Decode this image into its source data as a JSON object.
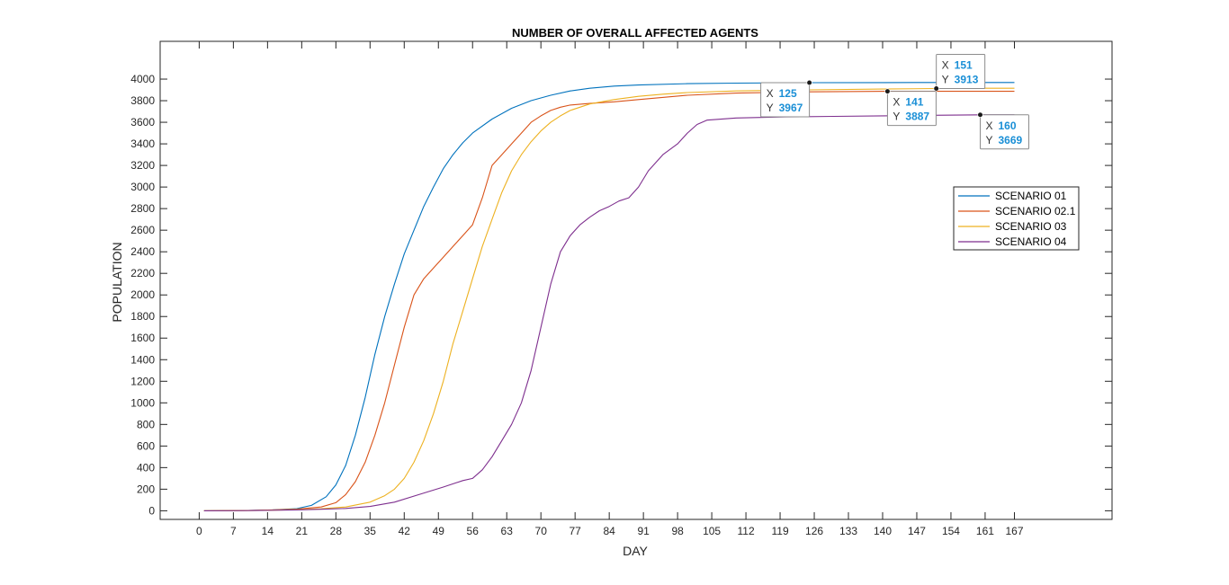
{
  "chart_data": {
    "type": "line",
    "title": "NUMBER OF OVERALL AFFECTED AGENTS",
    "xlabel": "DAY",
    "ylabel": "POPULATION",
    "xlim": [
      -8,
      187
    ],
    "ylim": [
      -80,
      4350
    ],
    "xticks": [
      0,
      7,
      14,
      21,
      28,
      35,
      42,
      49,
      56,
      63,
      70,
      77,
      84,
      91,
      98,
      105,
      112,
      119,
      126,
      133,
      140,
      147,
      154,
      161,
      167
    ],
    "yticks": [
      0,
      200,
      400,
      600,
      800,
      1000,
      1200,
      1400,
      1600,
      1800,
      2000,
      2200,
      2400,
      2600,
      2800,
      3000,
      3200,
      3400,
      3600,
      3800,
      4000
    ],
    "grid": false,
    "legend_position": "right",
    "series": [
      {
        "name": "SCENARIO 01",
        "color": "#0072BD",
        "x": [
          1,
          10,
          15,
          20,
          23,
          26,
          28,
          30,
          32,
          34,
          36,
          38,
          40,
          42,
          44,
          46,
          48,
          50,
          52,
          54,
          56,
          60,
          64,
          68,
          72,
          76,
          80,
          85,
          90,
          100,
          110,
          125,
          140,
          155,
          167
        ],
        "y": [
          0,
          3,
          8,
          20,
          50,
          130,
          240,
          420,
          700,
          1050,
          1450,
          1800,
          2100,
          2380,
          2600,
          2820,
          3000,
          3170,
          3300,
          3410,
          3500,
          3630,
          3730,
          3800,
          3850,
          3890,
          3915,
          3935,
          3945,
          3958,
          3963,
          3967,
          3968,
          3969,
          3969
        ]
      },
      {
        "name": "SCENARIO 02.1",
        "color": "#D95319",
        "x": [
          1,
          10,
          15,
          20,
          25,
          28,
          30,
          32,
          34,
          36,
          38,
          40,
          42,
          44,
          46,
          48,
          50,
          52,
          54,
          56,
          58,
          60,
          62,
          64,
          66,
          68,
          70,
          72,
          74,
          76,
          80,
          85,
          90,
          100,
          110,
          125,
          141,
          155,
          167
        ],
        "y": [
          0,
          3,
          8,
          15,
          35,
          75,
          150,
          270,
          450,
          700,
          1000,
          1350,
          1700,
          2000,
          2150,
          2250,
          2350,
          2450,
          2550,
          2650,
          2900,
          3200,
          3300,
          3400,
          3500,
          3600,
          3660,
          3710,
          3740,
          3760,
          3775,
          3790,
          3810,
          3850,
          3870,
          3882,
          3887,
          3887,
          3887
        ]
      },
      {
        "name": "SCENARIO 03",
        "color": "#EDB120",
        "x": [
          1,
          10,
          20,
          25,
          30,
          35,
          38,
          40,
          42,
          44,
          46,
          48,
          50,
          52,
          54,
          56,
          58,
          60,
          62,
          64,
          66,
          68,
          70,
          72,
          74,
          76,
          80,
          85,
          90,
          95,
          100,
          110,
          125,
          140,
          151,
          160,
          167
        ],
        "y": [
          0,
          2,
          10,
          18,
          35,
          80,
          140,
          200,
          300,
          450,
          650,
          900,
          1200,
          1550,
          1850,
          2150,
          2450,
          2700,
          2950,
          3150,
          3300,
          3420,
          3520,
          3600,
          3660,
          3710,
          3770,
          3810,
          3840,
          3860,
          3875,
          3890,
          3900,
          3908,
          3913,
          3915,
          3915
        ]
      },
      {
        "name": "SCENARIO 04",
        "color": "#7E2F8E",
        "x": [
          1,
          10,
          20,
          25,
          30,
          35,
          40,
          45,
          50,
          54,
          56,
          58,
          60,
          62,
          64,
          66,
          68,
          70,
          72,
          74,
          76,
          78,
          80,
          82,
          84,
          86,
          88,
          90,
          92,
          95,
          98,
          100,
          102,
          104,
          110,
          120,
          130,
          140,
          150,
          160,
          167
        ],
        "y": [
          0,
          2,
          8,
          14,
          22,
          40,
          80,
          150,
          220,
          280,
          300,
          380,
          500,
          650,
          800,
          1000,
          1300,
          1700,
          2100,
          2400,
          2550,
          2650,
          2720,
          2780,
          2820,
          2870,
          2900,
          3000,
          3150,
          3300,
          3400,
          3500,
          3580,
          3620,
          3640,
          3650,
          3655,
          3660,
          3665,
          3669,
          3669
        ]
      }
    ],
    "datatips": [
      {
        "series": "SCENARIO 01",
        "x_label": "X",
        "y_label": "Y",
        "x": 125,
        "y": 3967,
        "box_side": "left",
        "box_position": "below"
      },
      {
        "series": "SCENARIO 02.1",
        "x_label": "X",
        "y_label": "Y",
        "x": 141,
        "y": 3887,
        "box_side": "right",
        "box_position": "below"
      },
      {
        "series": "SCENARIO 03",
        "x_label": "X",
        "y_label": "Y",
        "x": 151,
        "y": 3913,
        "box_side": "right",
        "box_position": "above"
      },
      {
        "series": "SCENARIO 04",
        "x_label": "X",
        "y_label": "Y",
        "x": 160,
        "y": 3669,
        "box_side": "right",
        "box_position": "below"
      }
    ]
  }
}
